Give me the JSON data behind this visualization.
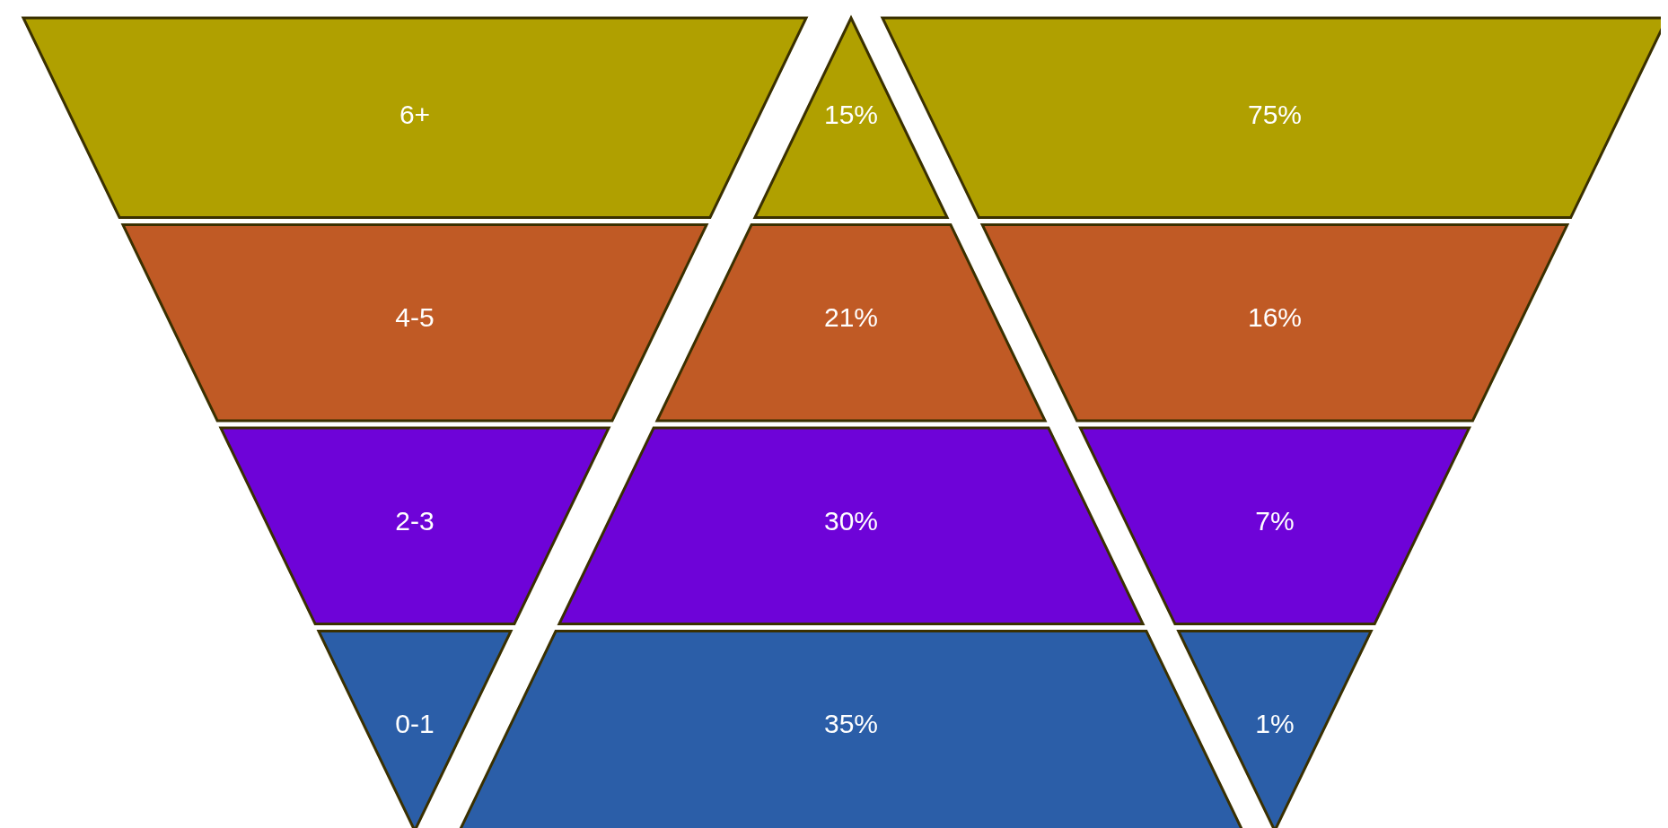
{
  "chart_data": {
    "type": "other",
    "categories": [
      "6+",
      "4-5",
      "2-3",
      "0-1"
    ],
    "colors": [
      "#b0a000",
      "#c05a25",
      "#6e03d8",
      "#2b5ea8"
    ],
    "series": [
      {
        "colors": [
          "#b0a000",
          "#c05a25",
          "#6e03d8",
          "#2b5ea8"
        ],
        "values": [
          15,
          21,
          30,
          35
        ],
        "value_labels": [
          "15%",
          "21%",
          "30%",
          "35%"
        ]
      },
      {
        "colors": [
          "#b0a000",
          "#c05a25",
          "#6e03d8",
          "#2b5ea8"
        ],
        "values": [
          75,
          16,
          7,
          1
        ],
        "value_labels": [
          "75%",
          "16%",
          "7%",
          "1%"
        ]
      }
    ]
  }
}
